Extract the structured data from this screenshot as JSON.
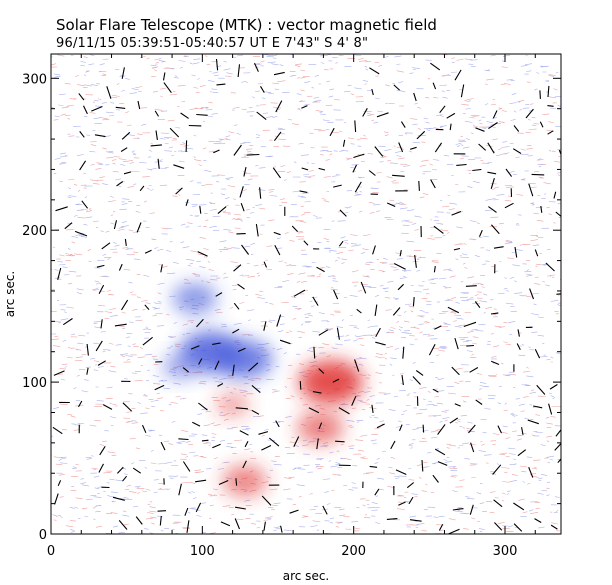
{
  "chart_data": {
    "type": "heatmap",
    "title": "Solar Flare Telescope (MTK) : vector magnetic field",
    "subtitle": "96/11/15  05:39:51-05:40:57 UT    E 7'43\"   S 4' 8\"",
    "xlabel": "arc sec.",
    "ylabel": "arc sec.",
    "xlim": [
      0,
      337
    ],
    "ylim": [
      0,
      316
    ],
    "xticks": [
      "0",
      "100",
      "200",
      "300"
    ],
    "yticks": [
      "0",
      "100",
      "200",
      "300"
    ],
    "grid": false,
    "colors": {
      "positive": "#e03030",
      "negative": "#3a4fd8",
      "vector": "#000000"
    },
    "regions": [
      {
        "polarity": "negative",
        "x": 95,
        "y": 155,
        "strength": 0.55
      },
      {
        "polarity": "negative",
        "x": 105,
        "y": 120,
        "strength": 0.9
      },
      {
        "polarity": "negative",
        "x": 128,
        "y": 115,
        "strength": 0.8
      },
      {
        "polarity": "negative",
        "x": 85,
        "y": 110,
        "strength": 0.35
      },
      {
        "polarity": "positive",
        "x": 185,
        "y": 100,
        "strength": 1.0
      },
      {
        "polarity": "positive",
        "x": 178,
        "y": 70,
        "strength": 0.6
      },
      {
        "polarity": "positive",
        "x": 128,
        "y": 35,
        "strength": 0.55
      },
      {
        "polarity": "positive",
        "x": 120,
        "y": 85,
        "strength": 0.3
      }
    ]
  }
}
